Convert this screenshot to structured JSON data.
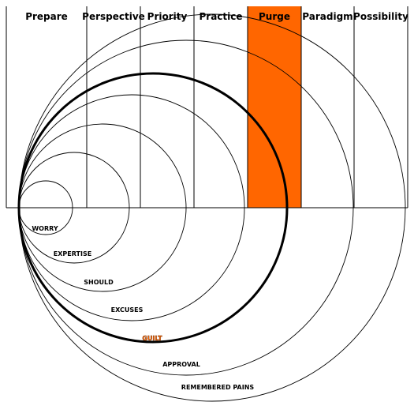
{
  "columns": [
    {
      "label": "Prepare",
      "highlighted": false
    },
    {
      "label": "Perspective",
      "highlighted": false
    },
    {
      "label": "Priority",
      "highlighted": false
    },
    {
      "label": "Practice",
      "highlighted": false
    },
    {
      "label": "Purge",
      "highlighted": true
    },
    {
      "label": "Paradigm",
      "highlighted": false
    },
    {
      "label": "Possibility",
      "highlighted": false
    }
  ],
  "rings": [
    {
      "label": "WORRY",
      "emphasized": false,
      "highlight_label": false
    },
    {
      "label": "EXPERTISE",
      "emphasized": false,
      "highlight_label": false
    },
    {
      "label": "SHOULD",
      "emphasized": false,
      "highlight_label": false
    },
    {
      "label": "EXCUSES",
      "emphasized": false,
      "highlight_label": false
    },
    {
      "label": "GUILT",
      "emphasized": true,
      "highlight_label": true
    },
    {
      "label": "APPROVAL",
      "emphasized": false,
      "highlight_label": false
    },
    {
      "label": "REMEMBERED PAINS",
      "emphasized": false,
      "highlight_label": false
    }
  ],
  "colors": {
    "highlight": "#ff6600",
    "line": "#000000",
    "background": "#ffffff"
  }
}
